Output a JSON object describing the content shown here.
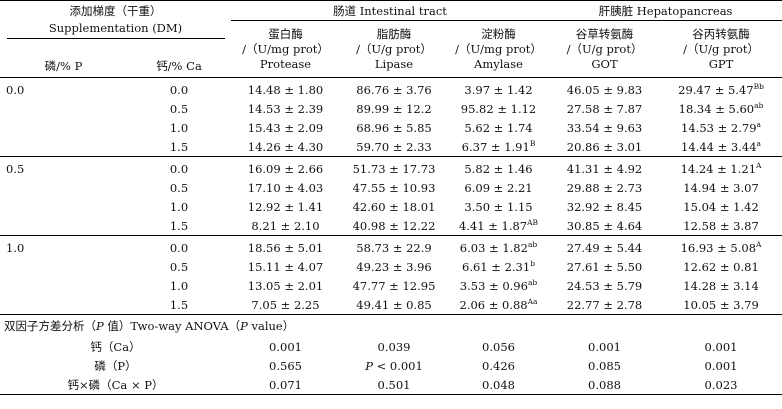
{
  "header": {
    "supp_cn": "添加梯度（干重）",
    "supp_en": "Supplementation (DM)",
    "p_label": "磷/% P",
    "ca_label": "钙/% Ca",
    "intestinal": "肠道 Intestinal tract",
    "hepato": "肝胰脏 Hepatopancreas",
    "protease_cn": "蛋白酶",
    "protease_unit": "/（U/mg prot）",
    "protease_en": "Protease",
    "lipase_cn": "脂肪酶",
    "lipase_unit": "/（U/g prot）",
    "lipase_en": "Lipase",
    "amylase_cn": "淀粉酶",
    "amylase_unit": "/（U/mg prot）",
    "amylase_en": "Amylase",
    "got_cn": "谷草转氨酶",
    "got_unit": "/（U/g prot）",
    "got_en": "GOT",
    "gpt_cn": "谷丙转氨酶",
    "gpt_unit": "/（U/g prot）",
    "gpt_en": "GPT"
  },
  "groups": [
    {
      "p": "0.0",
      "rows": [
        {
          "ca": "0.0",
          "protease": "14.48 ± 1.80",
          "lipase": "86.76 ± 3.76",
          "amylase": "3.97 ± 1.42",
          "amylase_sup": "",
          "got": "46.05 ± 9.83",
          "gpt": "29.47 ± 5.47",
          "gpt_sup": "Bb"
        },
        {
          "ca": "0.5",
          "protease": "14.53 ± 2.39",
          "lipase": "89.99 ± 12.2",
          "amylase": "95.82 ± 1.12",
          "amylase_sup": "",
          "got": "27.58 ± 7.87",
          "gpt": "18.34 ± 5.60",
          "gpt_sup": "ab"
        },
        {
          "ca": "1.0",
          "protease": "15.43 ± 2.09",
          "lipase": "68.96 ± 5.85",
          "amylase": "5.62 ± 1.74",
          "amylase_sup": "",
          "got": "33.54 ± 9.63",
          "gpt": "14.53 ± 2.79",
          "gpt_sup": "a"
        },
        {
          "ca": "1.5",
          "protease": "14.26 ± 4.30",
          "lipase": "59.70 ± 2.33",
          "amylase": "6.37 ± 1.91",
          "amylase_sup": "B",
          "got": "20.86 ± 3.01",
          "gpt": "14.44 ± 3.44",
          "gpt_sup": "a"
        }
      ]
    },
    {
      "p": "0.5",
      "rows": [
        {
          "ca": "0.0",
          "protease": "16.09 ± 2.66",
          "lipase": "51.73 ± 17.73",
          "amylase": "5.82 ± 1.46",
          "amylase_sup": "",
          "got": "41.31 ± 4.92",
          "gpt": "14.24 ± 1.21",
          "gpt_sup": "A"
        },
        {
          "ca": "0.5",
          "protease": "17.10 ± 4.03",
          "lipase": "47.55 ± 10.93",
          "amylase": "6.09 ± 2.21",
          "amylase_sup": "",
          "got": "29.88 ± 2.73",
          "gpt": "14.94 ± 3.07",
          "gpt_sup": ""
        },
        {
          "ca": "1.0",
          "protease": "12.92 ± 1.41",
          "lipase": "42.60 ± 18.01",
          "amylase": "3.50 ± 1.15",
          "amylase_sup": "",
          "got": "32.92 ± 8.45",
          "gpt": "15.04 ± 1.42",
          "gpt_sup": ""
        },
        {
          "ca": "1.5",
          "protease": "8.21 ± 2.10",
          "lipase": "40.98 ± 12.22",
          "amylase": "4.41 ± 1.87",
          "amylase_sup": "AB",
          "got": "30.85 ± 4.64",
          "gpt": "12.58 ± 3.87",
          "gpt_sup": ""
        }
      ]
    },
    {
      "p": "1.0",
      "rows": [
        {
          "ca": "0.0",
          "protease": "18.56 ± 5.01",
          "lipase": "58.73 ± 22.9",
          "amylase": "6.03 ± 1.82",
          "amylase_sup": "ab",
          "got": "27.49 ± 5.44",
          "gpt": "16.93 ± 5.08",
          "gpt_sup": "A"
        },
        {
          "ca": "0.5",
          "protease": "15.11 ± 4.07",
          "lipase": "49.23 ± 3.96",
          "amylase": "6.61 ± 2.31",
          "amylase_sup": "b",
          "got": "27.61 ± 5.50",
          "gpt": "12.62 ± 0.81",
          "gpt_sup": ""
        },
        {
          "ca": "1.0",
          "protease": "13.05 ± 2.01",
          "lipase": "47.77 ± 12.95",
          "amylase": "3.53 ± 0.96",
          "amylase_sup": "ab",
          "got": "24.53 ± 5.79",
          "gpt": "14.28 ± 3.14",
          "gpt_sup": ""
        },
        {
          "ca": "1.5",
          "protease": "7.05 ± 2.25",
          "lipase": "49.41 ± 0.85",
          "amylase": "2.06 ± 0.88",
          "amylase_sup": "Aa",
          "got": "22.77 ± 2.78",
          "gpt": "10.05 ± 3.79",
          "gpt_sup": ""
        }
      ]
    }
  ],
  "anova": {
    "title_pre": "双因子方差分析（",
    "title_p": "P",
    "title_mid": " 值）Two-way ANOVA（",
    "title_p2": "P",
    "title_post": " value）",
    "rows": [
      {
        "label": "钙（Ca）",
        "protease": "0.001",
        "lipase": "0.039",
        "amylase": "0.056",
        "got": "0.001",
        "gpt": "0.001"
      },
      {
        "label": "磷（P）",
        "protease": "0.565",
        "lipase": "P < 0.001",
        "amylase": "0.426",
        "got": "0.085",
        "gpt": "0.001"
      },
      {
        "label": "钙×磷（Ca × P）",
        "protease": "0.071",
        "lipase": "0.501",
        "amylase": "0.048",
        "got": "0.088",
        "gpt": "0.023"
      }
    ]
  }
}
